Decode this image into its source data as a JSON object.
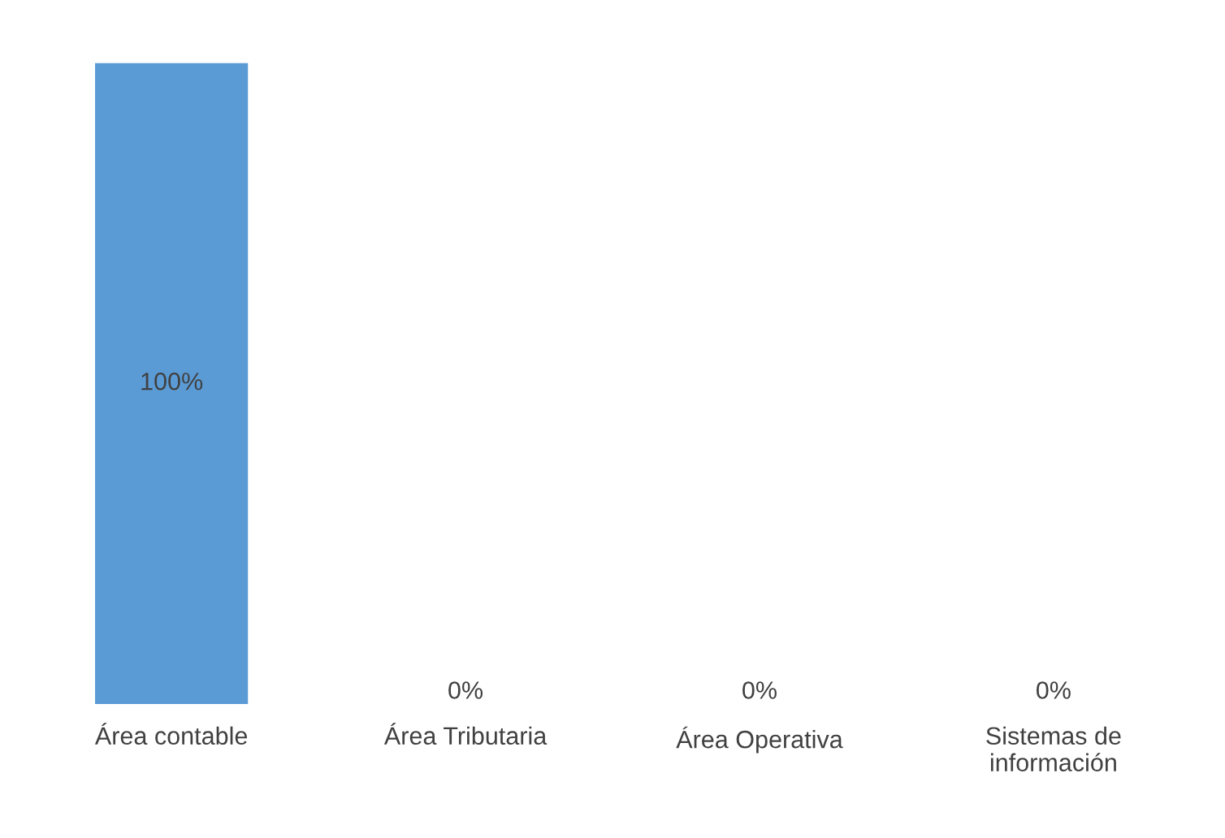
{
  "chart_data": {
    "type": "bar",
    "categories": [
      "Área contable",
      "Área Tributaria",
      "Área Operativa",
      "Sistemas de información"
    ],
    "values": [
      100,
      0,
      0,
      0
    ],
    "color": "#5b9bd5",
    "value_labels": [
      "100%",
      "0%",
      "0%",
      "0%"
    ],
    "grid": false,
    "legend": false
  }
}
